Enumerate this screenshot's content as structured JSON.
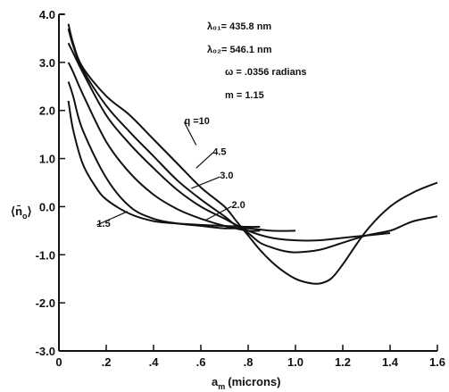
{
  "chart_data": {
    "type": "line",
    "xlabel_main": "a",
    "xlabel_sub": "m",
    "xlabel_unit": "(microns)",
    "ylabel_main": "⟨n̄",
    "ylabel_sub": "o",
    "ylabel_close": "⟩",
    "xlim": [
      0,
      1.6
    ],
    "ylim": [
      -3.0,
      4.0
    ],
    "x_ticks": [
      {
        "value": 0,
        "label": "0"
      },
      {
        "value": 0.2,
        "label": ".2"
      },
      {
        "value": 0.4,
        "label": ".4"
      },
      {
        "value": 0.6,
        "label": ".6"
      },
      {
        "value": 0.8,
        "label": ".8"
      },
      {
        "value": 1.0,
        "label": "1.0"
      },
      {
        "value": 1.2,
        "label": "1.2"
      },
      {
        "value": 1.4,
        "label": "1.4"
      },
      {
        "value": 1.6,
        "label": "1.6"
      }
    ],
    "y_ticks": [
      {
        "value": 4.0,
        "label": "4.0"
      },
      {
        "value": 3.0,
        "label": "3.0"
      },
      {
        "value": 2.0,
        "label": "2.0"
      },
      {
        "value": 1.0,
        "label": "1.0"
      },
      {
        "value": 0.0,
        "label": "0.0"
      },
      {
        "value": -1.0,
        "label": "-1.0"
      },
      {
        "value": -2.0,
        "label": "-2.0"
      },
      {
        "value": -3.0,
        "label": "-3.0"
      }
    ],
    "annotations": [
      "λ₀₁= 435.8 nm",
      "λ₀₂= 546.1 nm",
      "ω = .0356 radians",
      "m = 1.15"
    ],
    "series": [
      {
        "name": "q =10",
        "x": [
          0.04,
          0.06,
          0.1,
          0.2,
          0.3,
          0.4,
          0.5,
          0.6,
          0.7,
          0.75,
          0.8,
          0.85,
          0.9,
          0.95,
          1.0,
          1.05,
          1.1,
          1.15,
          1.2,
          1.3,
          1.4,
          1.5,
          1.6
        ],
        "y": [
          3.8,
          3.4,
          2.9,
          2.3,
          1.9,
          1.4,
          0.9,
          0.4,
          0.0,
          -0.3,
          -0.6,
          -0.9,
          -1.15,
          -1.35,
          -1.5,
          -1.58,
          -1.6,
          -1.5,
          -1.2,
          -0.5,
          0.0,
          0.3,
          0.5
        ]
      },
      {
        "name": "4.5",
        "x": [
          0.04,
          0.06,
          0.1,
          0.2,
          0.3,
          0.4,
          0.5,
          0.6,
          0.7,
          0.75,
          0.8,
          0.85,
          0.9,
          0.95,
          1.0,
          1.1,
          1.2,
          1.3,
          1.4,
          1.45,
          1.5,
          1.6
        ],
        "y": [
          3.7,
          3.35,
          2.85,
          2.1,
          1.55,
          1.05,
          0.55,
          0.15,
          -0.2,
          -0.4,
          -0.55,
          -0.75,
          -0.85,
          -0.92,
          -0.95,
          -0.9,
          -0.75,
          -0.6,
          -0.5,
          -0.4,
          -0.3,
          -0.2
        ]
      },
      {
        "name": "3.0",
        "x": [
          0.04,
          0.06,
          0.1,
          0.2,
          0.3,
          0.4,
          0.5,
          0.6,
          0.7,
          0.8,
          0.9,
          1.0,
          1.1,
          1.2,
          1.3,
          1.4
        ],
        "y": [
          3.4,
          3.2,
          2.8,
          1.9,
          1.3,
          0.8,
          0.35,
          0.0,
          -0.25,
          -0.5,
          -0.65,
          -0.7,
          -0.7,
          -0.65,
          -0.6,
          -0.55
        ]
      },
      {
        "name": "2.0",
        "x": [
          0.04,
          0.06,
          0.1,
          0.2,
          0.3,
          0.4,
          0.5,
          0.6,
          0.7,
          0.8,
          0.85
        ],
        "y": [
          3.0,
          2.8,
          2.35,
          1.35,
          0.7,
          0.25,
          -0.05,
          -0.25,
          -0.4,
          -0.5,
          -0.5
        ]
      },
      {
        "name": "1.5",
        "x": [
          0.04,
          0.06,
          0.1,
          0.2,
          0.3,
          0.4,
          0.5,
          0.6,
          0.7,
          0.8,
          0.9,
          1.0
        ],
        "y": [
          2.6,
          2.3,
          1.6,
          0.6,
          0.0,
          -0.25,
          -0.35,
          -0.4,
          -0.45,
          -0.45,
          -0.5,
          -0.5
        ]
      },
      {
        "name": "",
        "x": [
          0.04,
          0.06,
          0.1,
          0.15,
          0.2,
          0.3,
          0.4,
          0.5,
          0.6,
          0.7,
          0.8,
          0.85
        ],
        "y": [
          2.2,
          1.6,
          0.9,
          0.45,
          0.15,
          -0.15,
          -0.3,
          -0.35,
          -0.38,
          -0.4,
          -0.42,
          -0.42
        ]
      }
    ]
  }
}
